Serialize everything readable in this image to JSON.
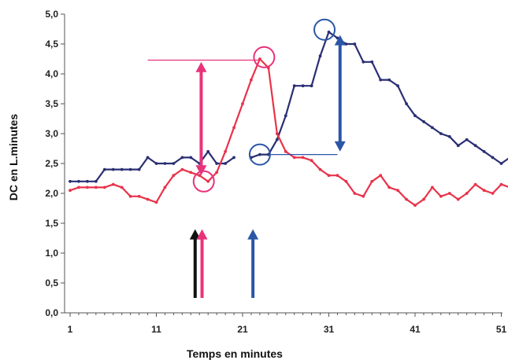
{
  "chart_data": {
    "type": "line",
    "xlabel": "Temps en minutes",
    "ylabel": "DC en L.minutes",
    "xlim": [
      1,
      52
    ],
    "ylim": [
      0,
      5
    ],
    "x_ticks": [
      1,
      11,
      21,
      31,
      41,
      51
    ],
    "x_tick_labels": [
      "1",
      "11",
      "21",
      "31",
      "41",
      "51"
    ],
    "y_ticks": [
      0,
      0.5,
      1,
      1.5,
      2,
      2.5,
      3,
      3.5,
      4,
      4.5,
      5
    ],
    "y_tick_labels": [
      "0,0",
      "0,5",
      "1,0",
      "1,5",
      "2,0",
      "2,5",
      "3,0",
      "3,5",
      "4,0",
      "4,5",
      "5,0"
    ],
    "grid": false,
    "legend": "none",
    "series": [
      {
        "color": "#2a2f73",
        "segments": [
          [
            [
              1,
              2.2
            ],
            [
              2,
              2.2
            ],
            [
              3,
              2.2
            ],
            [
              4,
              2.2
            ],
            [
              5,
              2.4
            ],
            [
              6,
              2.4
            ],
            [
              7,
              2.4
            ],
            [
              8,
              2.4
            ],
            [
              9,
              2.4
            ],
            [
              10,
              2.6
            ],
            [
              11,
              2.5
            ],
            [
              12,
              2.5
            ],
            [
              13,
              2.5
            ],
            [
              14,
              2.6
            ],
            [
              15,
              2.6
            ],
            [
              16,
              2.5
            ],
            [
              17,
              2.7
            ],
            [
              18,
              2.5
            ],
            [
              19,
              2.5
            ],
            [
              20,
              2.6
            ]
          ],
          [
            [
              22,
              2.6
            ],
            [
              23,
              2.65
            ],
            [
              24,
              2.65
            ],
            [
              25,
              2.9
            ],
            [
              26,
              3.3
            ],
            [
              27,
              3.8
            ],
            [
              28,
              3.8
            ],
            [
              29,
              3.8
            ],
            [
              30,
              4.3
            ],
            [
              31,
              4.7
            ],
            [
              32,
              4.6
            ],
            [
              33,
              4.5
            ],
            [
              34,
              4.5
            ],
            [
              35,
              4.2
            ],
            [
              36,
              4.2
            ],
            [
              37,
              3.9
            ],
            [
              38,
              3.9
            ],
            [
              39,
              3.8
            ],
            [
              40,
              3.5
            ],
            [
              41,
              3.3
            ],
            [
              42,
              3.2
            ],
            [
              43,
              3.1
            ],
            [
              44,
              3.0
            ],
            [
              45,
              2.95
            ],
            [
              46,
              2.8
            ],
            [
              47,
              2.9
            ],
            [
              48,
              2.8
            ],
            [
              49,
              2.7
            ],
            [
              50,
              2.6
            ],
            [
              51,
              2.5
            ],
            [
              52,
              2.6
            ]
          ]
        ]
      },
      {
        "color": "#e8334a",
        "segments": [
          [
            [
              1,
              2.05
            ],
            [
              2,
              2.1
            ],
            [
              3,
              2.1
            ],
            [
              4,
              2.1
            ],
            [
              5,
              2.1
            ],
            [
              6,
              2.15
            ],
            [
              7,
              2.1
            ],
            [
              8,
              1.95
            ],
            [
              9,
              1.95
            ],
            [
              10,
              1.9
            ],
            [
              11,
              1.85
            ],
            [
              12,
              2.1
            ],
            [
              13,
              2.3
            ],
            [
              14,
              2.4
            ],
            [
              15,
              2.35
            ],
            [
              16,
              2.3
            ],
            [
              17,
              2.2
            ],
            [
              18,
              2.35
            ],
            [
              19,
              2.7
            ],
            [
              20,
              3.1
            ],
            [
              21,
              3.5
            ],
            [
              22,
              3.9
            ],
            [
              23,
              4.25
            ],
            [
              24,
              4.1
            ],
            [
              25,
              3.0
            ],
            [
              26,
              2.7
            ],
            [
              27,
              2.6
            ],
            [
              28,
              2.6
            ],
            [
              29,
              2.55
            ],
            [
              30,
              2.4
            ],
            [
              31,
              2.3
            ],
            [
              32,
              2.3
            ],
            [
              33,
              2.2
            ],
            [
              34,
              2.0
            ],
            [
              35,
              1.95
            ],
            [
              36,
              2.2
            ],
            [
              37,
              2.3
            ],
            [
              38,
              2.1
            ],
            [
              39,
              2.05
            ],
            [
              40,
              1.9
            ],
            [
              41,
              1.8
            ],
            [
              42,
              1.9
            ],
            [
              43,
              2.1
            ],
            [
              44,
              1.95
            ],
            [
              45,
              2.0
            ],
            [
              46,
              1.9
            ],
            [
              47,
              2.0
            ],
            [
              48,
              2.15
            ],
            [
              49,
              2.05
            ],
            [
              50,
              2.0
            ],
            [
              51,
              2.15
            ],
            [
              52,
              2.1
            ]
          ]
        ]
      }
    ],
    "annotations": {
      "circles": [
        {
          "name": "pink-circle-peak",
          "x": 23.5,
          "y": 4.28,
          "color": "#e8337a"
        },
        {
          "name": "pink-circle-trough",
          "x": 16.5,
          "y": 2.2,
          "color": "#e8337a"
        },
        {
          "name": "blue-circle-peak",
          "x": 30.5,
          "y": 4.74,
          "color": "#2b56a8"
        },
        {
          "name": "blue-circle-trough",
          "x": 23,
          "y": 2.65,
          "color": "#2b56a8"
        }
      ],
      "hlines": [
        {
          "name": "pink-reference-line",
          "x1": 10,
          "x2": 23,
          "y": 4.23,
          "color": "#e8337a"
        },
        {
          "name": "blue-reference-line",
          "x1": 24,
          "x2": 32,
          "y": 2.65,
          "color": "#2b56a8"
        }
      ],
      "double_arrows": [
        {
          "name": "pink-double-arrow",
          "x": 16.2,
          "y1": 2.3,
          "y2": 4.2,
          "color": "#e8337a"
        },
        {
          "name": "blue-double-arrow",
          "x": 32.3,
          "y1": 2.7,
          "y2": 4.65,
          "color": "#2b56a8"
        }
      ],
      "up_arrows": [
        {
          "name": "black-up-arrow",
          "x": 15.5,
          "y1": 0.25,
          "y2": 1.4,
          "color": "#111111"
        },
        {
          "name": "pink-up-arrow",
          "x": 16.3,
          "y1": 0.25,
          "y2": 1.4,
          "color": "#e8337a"
        },
        {
          "name": "blue-up-arrow",
          "x": 22.2,
          "y1": 0.25,
          "y2": 1.4,
          "color": "#2b56a8"
        }
      ]
    }
  }
}
